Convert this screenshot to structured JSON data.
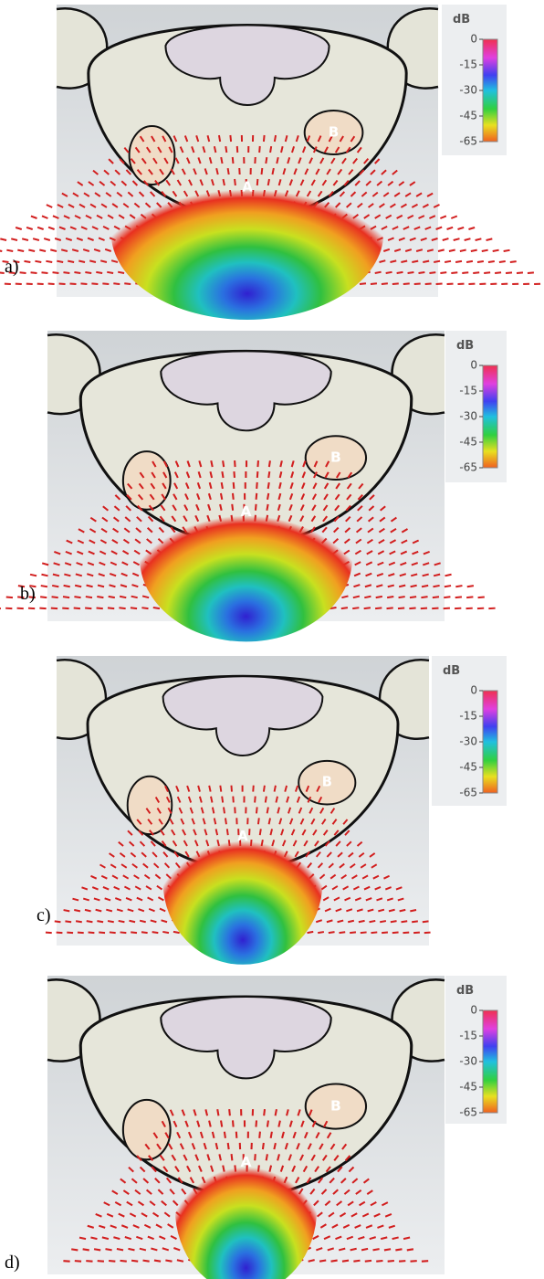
{
  "panels": [
    {
      "label": "a)",
      "unit": "dB",
      "scale": [
        "0",
        "-15",
        "-30",
        "-45",
        "-65"
      ],
      "markers": [
        "A",
        "B"
      ]
    },
    {
      "label": "b)",
      "unit": "dB",
      "scale": [
        "0",
        "-15",
        "-30",
        "-45",
        "-65"
      ],
      "markers": [
        "A",
        "B"
      ]
    },
    {
      "label": "c)",
      "unit": "dB",
      "scale": [
        "0",
        "-15",
        "-30",
        "-45",
        "-65"
      ],
      "markers": [
        "A",
        "B"
      ]
    },
    {
      "label": "d)",
      "unit": "dB",
      "scale": [
        "0",
        "-15",
        "-30",
        "-45",
        "-65"
      ],
      "markers": [
        "A",
        "B"
      ]
    }
  ]
}
